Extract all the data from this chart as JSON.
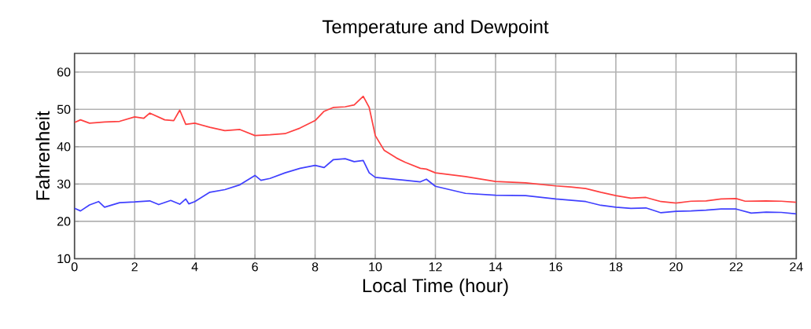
{
  "chart_data": {
    "type": "line",
    "title": "Temperature and Dewpoint",
    "xlabel": "Local Time (hour)",
    "ylabel": "Fahrenheit",
    "xlim": [
      0,
      24
    ],
    "ylim": [
      10,
      65
    ],
    "xticks": [
      0,
      2,
      4,
      6,
      8,
      10,
      12,
      14,
      16,
      18,
      20,
      22,
      24
    ],
    "yticks": [
      10,
      20,
      30,
      40,
      50,
      60
    ],
    "grid": true,
    "marker": "none",
    "line_style": "solid",
    "series": [
      {
        "color": "#ff4040",
        "x": [
          0,
          0.2,
          0.5,
          1,
          1.5,
          2,
          2.3,
          2.5,
          3,
          3.3,
          3.5,
          3.7,
          4,
          4.5,
          5,
          5.5,
          6,
          6.5,
          7,
          7.5,
          8,
          8.3,
          8.6,
          9,
          9.3,
          9.6,
          9.8,
          10,
          10.3,
          10.7,
          11,
          11.5,
          11.7,
          12,
          13,
          14,
          15,
          16,
          16.5,
          17,
          17.5,
          18,
          18.5,
          19,
          19.5,
          20,
          20.5,
          21,
          21.5,
          22,
          22.3,
          23,
          23.5,
          24
        ],
        "values": [
          46.5,
          47.2,
          46.3,
          46.6,
          46.8,
          48,
          47.6,
          49,
          47.2,
          47,
          49.8,
          46,
          46.3,
          45.2,
          44.3,
          44.6,
          43,
          43.2,
          43.5,
          45,
          47,
          49.5,
          50.5,
          50.7,
          51.2,
          53.5,
          50.5,
          43,
          39,
          37,
          35.8,
          34.2,
          34,
          33,
          32,
          30.7,
          30.3,
          29.5,
          29.2,
          28.8,
          27.8,
          26.9,
          26.2,
          26.4,
          25.3,
          24.9,
          25.4,
          25.5,
          26,
          26.1,
          25.4,
          25.5,
          25.4,
          25.1
        ]
      },
      {
        "color": "#4040ff",
        "x": [
          0,
          0.2,
          0.5,
          0.8,
          1,
          1.5,
          2,
          2.5,
          2.8,
          3.2,
          3.5,
          3.7,
          3.8,
          4,
          4.5,
          5,
          5.5,
          6,
          6.2,
          6.5,
          7,
          7.5,
          8,
          8.3,
          8.6,
          9,
          9.3,
          9.6,
          9.8,
          10,
          11,
          11.5,
          11.7,
          12,
          13,
          14,
          15,
          16,
          17,
          17.5,
          18,
          18.5,
          19,
          19.5,
          20,
          20.5,
          21,
          21.5,
          22,
          22.5,
          23,
          23.5,
          24
        ],
        "values": [
          23.5,
          22.8,
          24.4,
          25.3,
          23.8,
          25,
          25.2,
          25.5,
          24.5,
          25.6,
          24.6,
          26,
          24.7,
          25.3,
          27.8,
          28.5,
          29.8,
          32.3,
          31,
          31.5,
          33,
          34.2,
          35,
          34.4,
          36.5,
          36.8,
          36,
          36.3,
          33,
          31.8,
          31,
          30.6,
          31.3,
          29.4,
          27.5,
          27,
          26.9,
          26,
          25.3,
          24.3,
          23.8,
          23.5,
          23.6,
          22.3,
          22.7,
          22.8,
          23,
          23.3,
          23.3,
          22.2,
          22.5,
          22.4,
          22
        ]
      }
    ]
  }
}
